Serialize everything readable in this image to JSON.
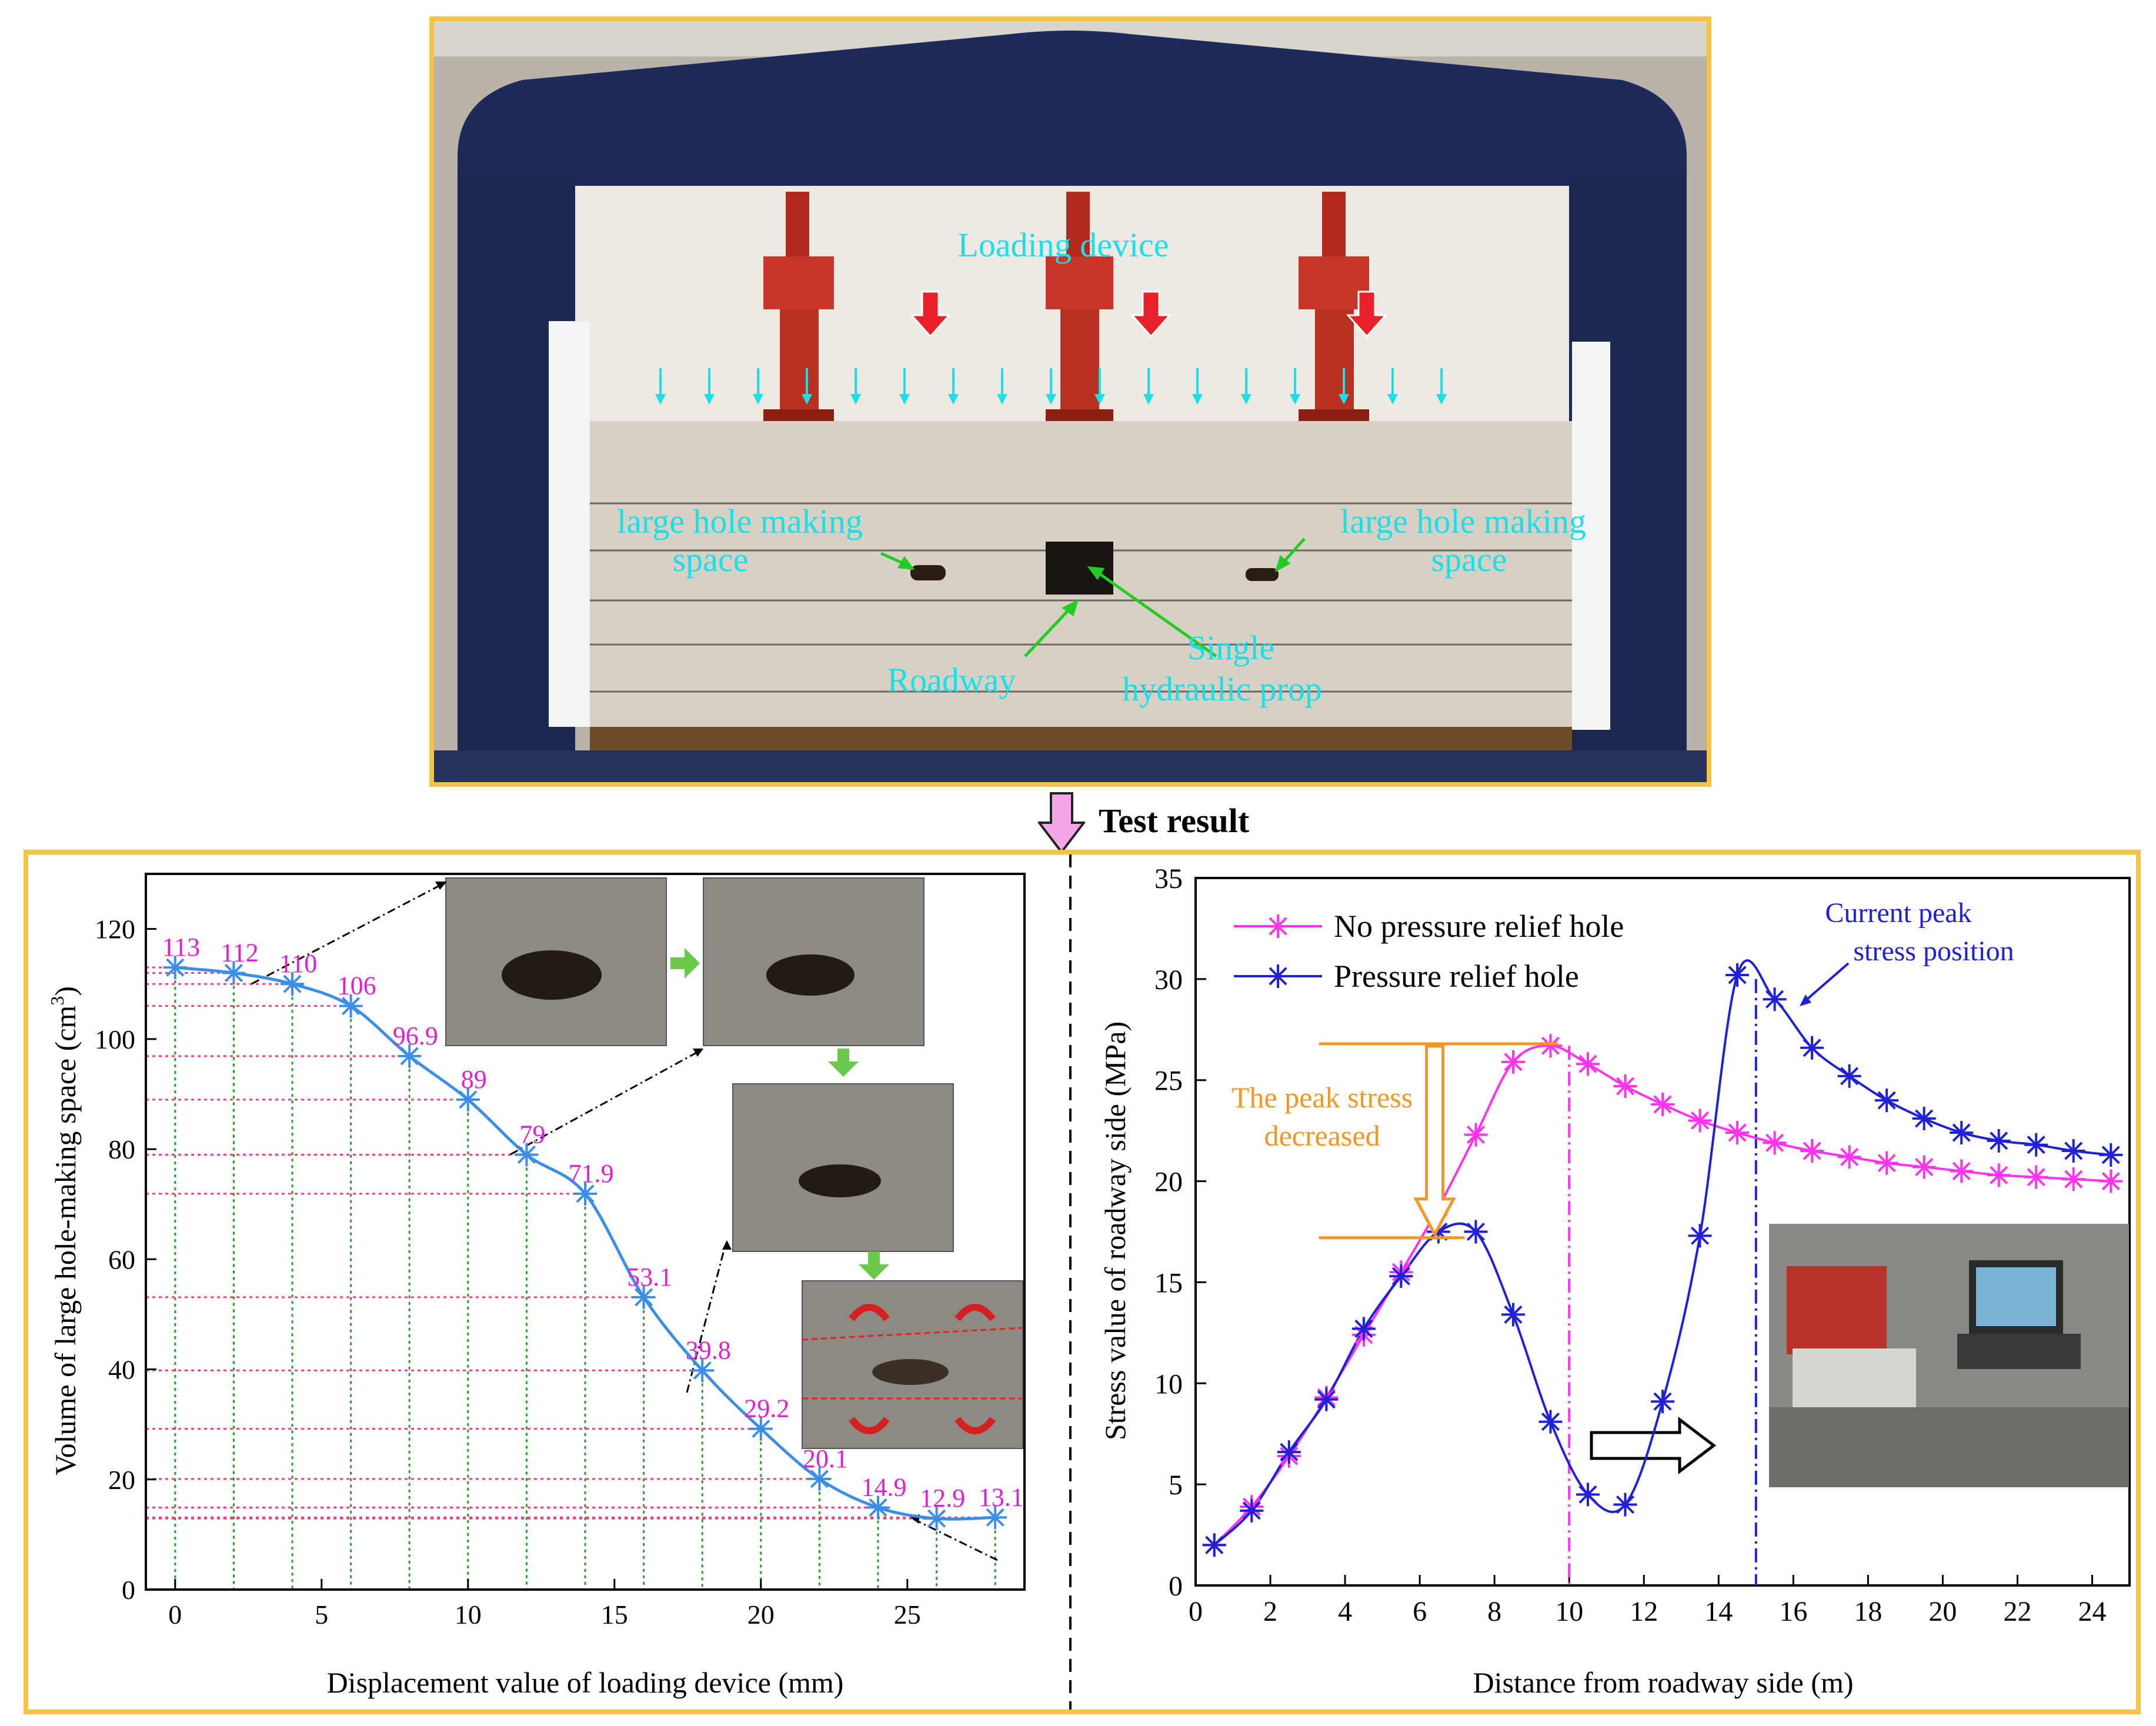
{
  "arrow_label": "Test result",
  "photo": {
    "labels": {
      "loading_device": "Loading device",
      "hole_left_line1": "large hole making",
      "hole_left_line2": "space",
      "hole_right_line1": "large hole making",
      "hole_right_line2": "space",
      "roadway": "Roadway",
      "prop_line1": "Single",
      "prop_line2": "hydraulic prop"
    },
    "colors": {
      "label": "#18e0e8",
      "pointer": "#22cc22",
      "load_arrow": "#e8202a"
    }
  },
  "chart_data": [
    {
      "type": "line",
      "xlabel": "Displacement value of loading device (mm)",
      "ylabel": "Volume of large hole-making space",
      "ylabel_unit": "cm",
      "ylabel_sup": "3",
      "xlim": [
        -1,
        29
      ],
      "ylim": [
        0,
        130
      ],
      "xticks": [
        0,
        5,
        10,
        15,
        20,
        25
      ],
      "yticks": [
        0,
        20,
        40,
        60,
        80,
        100,
        120
      ],
      "series": [
        {
          "color": "#3a8ee8",
          "marker": "asterisk",
          "x": [
            0,
            2,
            4,
            6,
            8,
            10,
            12,
            14,
            16,
            18,
            20,
            22,
            24,
            26,
            28
          ],
          "y": [
            113,
            112,
            110,
            106,
            96.9,
            89,
            79,
            71.9,
            53.1,
            39.8,
            29.2,
            20.1,
            14.9,
            12.9,
            13.1
          ],
          "labels": [
            "113",
            "112",
            "110",
            "106",
            "96.9",
            "89",
            "79",
            "71.9",
            "53.1",
            "39.8",
            "29.2",
            "20.1",
            "14.9",
            "12.9",
            "13.1"
          ]
        }
      ],
      "label_color": "#e020d0",
      "guide_color_h": "#ff3a7a",
      "guide_color_v": "#2a9a2a"
    },
    {
      "type": "line",
      "xlabel": "Distance from roadway side (m)",
      "ylabel": "Stress value of roadway side (MPa)",
      "xlim": [
        0,
        25
      ],
      "ylim": [
        0,
        35
      ],
      "xticks": [
        0,
        2,
        4,
        6,
        8,
        10,
        12,
        14,
        16,
        18,
        20,
        22,
        24
      ],
      "yticks": [
        0,
        5,
        10,
        15,
        20,
        25,
        30,
        35
      ],
      "legend_position": "top-left",
      "series": [
        {
          "name": "No pressure relief hole",
          "color": "#ff33ee",
          "marker": "asterisk",
          "x": [
            0.5,
            1.5,
            2.5,
            3.5,
            4.5,
            5.5,
            6.5,
            7.5,
            8.5,
            9.5,
            10.5,
            11.5,
            12.5,
            13.5,
            14.5,
            15.5,
            16.5,
            17.5,
            18.5,
            19.5,
            20.5,
            21.5,
            22.5,
            23.5,
            24.5
          ],
          "y": [
            2.0,
            3.9,
            6.4,
            9.3,
            12.4,
            15.5,
            18.7,
            22.3,
            25.9,
            26.7,
            25.8,
            24.7,
            23.8,
            23.0,
            22.4,
            21.9,
            21.5,
            21.2,
            20.9,
            20.7,
            20.5,
            20.3,
            20.2,
            20.1,
            20.0
          ]
        },
        {
          "name": "Pressure relief hole",
          "color": "#2020d8",
          "marker": "asterisk",
          "x": [
            0.5,
            1.5,
            2.5,
            3.5,
            4.5,
            5.5,
            6.5,
            7.5,
            8.5,
            9.5,
            10.5,
            11.5,
            12.5,
            13.5,
            14.5,
            15.5,
            16.5,
            17.5,
            18.5,
            19.5,
            20.5,
            21.5,
            22.5,
            23.5,
            24.5
          ],
          "y": [
            2.0,
            3.7,
            6.6,
            9.2,
            12.7,
            15.3,
            17.5,
            17.5,
            13.4,
            8.1,
            4.5,
            4.0,
            9.1,
            17.3,
            30.2,
            29.0,
            26.6,
            25.2,
            24.0,
            23.1,
            22.4,
            22.0,
            21.8,
            21.5,
            21.3
          ]
        }
      ],
      "annotations": {
        "peak_line1": "Current peak",
        "peak_line2": "stress position",
        "decrease_line1": "The peak stress",
        "decrease_line2": "decreased",
        "vline_magenta_x": 10,
        "vline_blue_x": 15,
        "decrease_top_y": 26.8,
        "decrease_bottom_y": 17.2
      },
      "annotation_colors": {
        "peak": "#2020d8",
        "decrease": "#f5961e"
      }
    }
  ]
}
